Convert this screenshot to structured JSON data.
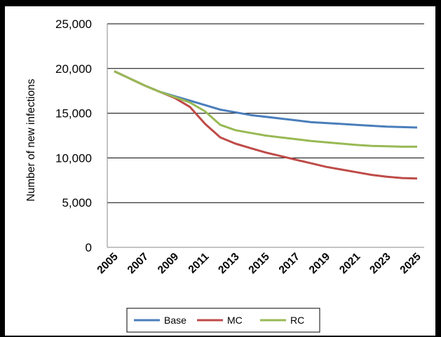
{
  "chart_data": {
    "type": "line",
    "ylabel": "Number of new infections",
    "xlabel": "",
    "x": [
      2005,
      2006,
      2007,
      2008,
      2009,
      2010,
      2011,
      2012,
      2013,
      2014,
      2015,
      2016,
      2017,
      2018,
      2019,
      2020,
      2021,
      2022,
      2023,
      2024,
      2025
    ],
    "x_tick_labels": [
      "2005",
      "2007",
      "2009",
      "2011",
      "2013",
      "2015",
      "2017",
      "2019",
      "2021",
      "2023",
      "2025"
    ],
    "y_tick_labels": [
      "0",
      "5,000",
      "10,000",
      "15,000",
      "20,000",
      "25,000"
    ],
    "ylim": [
      0,
      25000
    ],
    "grid": "horizontal",
    "legend_position": "bottom",
    "series": [
      {
        "name": "Base",
        "color": "#4a7ebb",
        "values": [
          19700,
          18900,
          18100,
          17400,
          16900,
          16400,
          15900,
          15400,
          15100,
          14800,
          14600,
          14400,
          14200,
          14000,
          13900,
          13800,
          13700,
          13600,
          13500,
          13450,
          13400
        ]
      },
      {
        "name": "MC",
        "color": "#be4b48",
        "values": [
          19700,
          18900,
          18100,
          17400,
          16700,
          15700,
          13800,
          12300,
          11600,
          11100,
          10600,
          10200,
          9800,
          9400,
          9000,
          8700,
          8400,
          8100,
          7900,
          7750,
          7700
        ]
      },
      {
        "name": "RC",
        "color": "#98b954",
        "values": [
          19700,
          18900,
          18100,
          17400,
          16800,
          16200,
          15200,
          13700,
          13100,
          12800,
          12500,
          12300,
          12100,
          11900,
          11750,
          11600,
          11450,
          11350,
          11300,
          11250,
          11250
        ]
      }
    ]
  }
}
